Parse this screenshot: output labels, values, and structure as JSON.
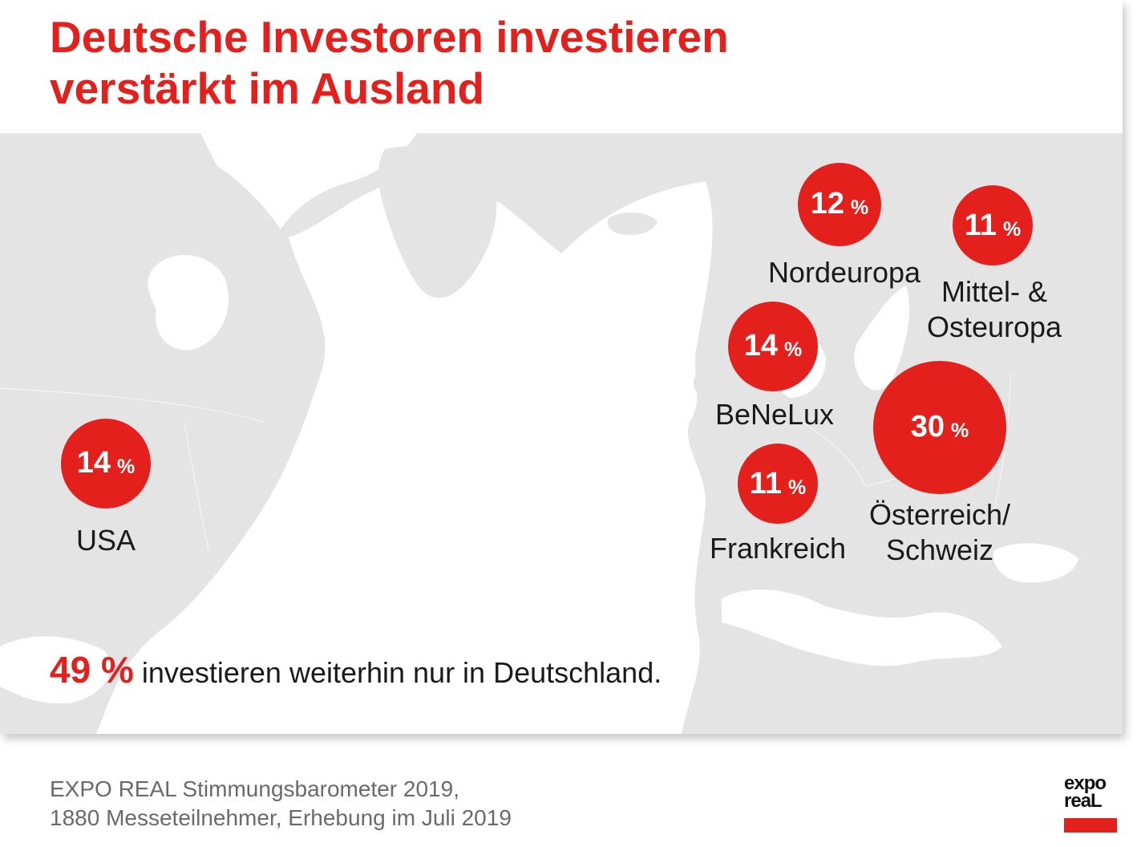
{
  "title": {
    "line1": "Deutsche Investoren investieren",
    "line2": "verstärkt im Ausland"
  },
  "colors": {
    "accent": "#e3201c",
    "land": "#e4e4e4",
    "ocean": "#ffffff",
    "text": "#1a1a1a"
  },
  "chart_data": {
    "type": "bubble-map",
    "unit": "%",
    "regions": [
      {
        "key": "nordeuropa",
        "label_lines": [
          "Nordeuropa"
        ],
        "value": 12
      },
      {
        "key": "mittel-osteuropa",
        "label_lines": [
          "Mittel- &",
          "Osteuropa"
        ],
        "value": 11
      },
      {
        "key": "benelux",
        "label_lines": [
          "BeNeLux"
        ],
        "value": 14
      },
      {
        "key": "oesterreich-schweiz",
        "label_lines": [
          "Österreich/",
          "Schweiz"
        ],
        "value": 30
      },
      {
        "key": "frankreich",
        "label_lines": [
          "Frankreich"
        ],
        "value": 11
      },
      {
        "key": "usa",
        "label_lines": [
          "USA"
        ],
        "value": 14
      }
    ]
  },
  "summary": {
    "value": "49 %",
    "text": "investieren weiterhin nur in Deutschland."
  },
  "source": {
    "line1": "EXPO REAL Stimmungsbarometer 2019,",
    "line2": "1880 Messeteilnehmer, Erhebung im Juli 2019"
  },
  "logo": {
    "line1": "expo",
    "line2": "reaL"
  }
}
